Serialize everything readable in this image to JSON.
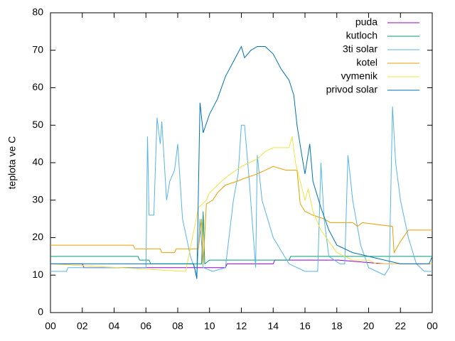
{
  "chart_data": {
    "type": "line",
    "ylabel": "teplota ve C",
    "xlim": [
      0,
      24
    ],
    "xticks": [
      {
        "value": 0,
        "label": "00"
      },
      {
        "value": 2,
        "label": "02"
      },
      {
        "value": 4,
        "label": "04"
      },
      {
        "value": 6,
        "label": "06"
      },
      {
        "value": 8,
        "label": "08"
      },
      10,
      12,
      14,
      16,
      18,
      20,
      22,
      {
        "value": 24,
        "label": "00"
      }
    ],
    "ylim": [
      0,
      80
    ],
    "yticks": [
      0,
      10,
      20,
      30,
      40,
      50,
      60,
      70,
      80
    ],
    "legend": "top-right",
    "series": [
      {
        "name": "puda",
        "color": "#9400d3",
        "x": [
          0,
          2,
          2.1,
          9.5,
          9.6,
          11,
          11.1,
          14,
          14.1,
          18,
          18.1,
          21,
          21.1,
          24
        ],
        "values": [
          13,
          13,
          12,
          12,
          12,
          12,
          13,
          13,
          14,
          14,
          14,
          13,
          13,
          13
        ]
      },
      {
        "name": "kutloch",
        "color": "#009e73",
        "x": [
          0,
          5.5,
          5.6,
          6.2,
          6.3,
          9.3,
          9.5,
          9.6,
          9.7,
          10,
          15,
          15.1,
          24
        ],
        "values": [
          15,
          15,
          14,
          14,
          13,
          13,
          13,
          27,
          13,
          14,
          14,
          15,
          15
        ]
      },
      {
        "name": "3ti solar",
        "color": "#56b4e9",
        "x": [
          0,
          1,
          1.1,
          6,
          6.1,
          6.2,
          6.5,
          6.7,
          6.9,
          7.0,
          7.3,
          7.5,
          7.8,
          8.0,
          8.3,
          8.8,
          9.2,
          9.4,
          9.6,
          10.2,
          11,
          11.5,
          11.8,
          12,
          12.2,
          12.5,
          12.9,
          13,
          13.3,
          14,
          15,
          16,
          16.8,
          17,
          17.2,
          17.5,
          18.2,
          18.5,
          18.7,
          19,
          19.5,
          20,
          20.5,
          21,
          21.3,
          21.5,
          21.7,
          22,
          22.5,
          23,
          23.5,
          24
        ],
        "values": [
          11,
          11,
          12,
          12,
          47,
          26,
          26,
          52,
          45,
          51,
          30,
          35,
          38,
          45,
          25,
          15,
          10,
          25,
          12,
          11,
          12,
          30,
          37,
          50,
          50,
          35,
          12,
          42,
          30,
          20,
          13,
          11,
          11,
          40,
          25,
          15,
          13,
          13,
          42,
          30,
          18,
          12,
          11,
          10,
          12,
          55,
          40,
          30,
          20,
          13,
          11,
          11
        ]
      },
      {
        "name": "kotel",
        "color": "#e69f00",
        "x": [
          0,
          5.2,
          5.3,
          6.9,
          7.0,
          7.8,
          7.9,
          9.3,
          9.5,
          9.6,
          9.8,
          10.2,
          10.5,
          11,
          11.7,
          12.3,
          13,
          13.5,
          14,
          14.8,
          15.5,
          15.7,
          16,
          16.5,
          17.2,
          17.6,
          19,
          19.3,
          19.6,
          21.5,
          21.6,
          22,
          22.5,
          24
        ],
        "values": [
          18,
          18,
          17,
          17,
          16,
          16,
          17,
          17,
          25,
          13,
          29,
          30,
          32,
          34,
          35,
          36,
          37,
          38,
          39,
          38,
          38,
          29,
          27,
          26,
          25,
          24,
          24,
          23,
          24,
          23,
          16,
          19,
          22,
          22
        ]
      },
      {
        "name": "vymenik",
        "color": "#f0e442",
        "x": [
          0,
          8.5,
          9.3,
          9.8,
          10,
          11,
          12,
          13,
          13.5,
          14,
          15,
          15.2,
          15.4,
          15.7,
          16,
          16.2,
          16.5,
          17,
          17.5,
          18,
          18.5,
          19,
          20,
          20.5,
          24
        ],
        "values": [
          13,
          11,
          28,
          30,
          32,
          36,
          39,
          41,
          43,
          44,
          44,
          47,
          40,
          35,
          30,
          33,
          27,
          22,
          19,
          16,
          15,
          14,
          14,
          13,
          13
        ]
      },
      {
        "name": "privod solar",
        "color": "#0072b2",
        "x": [
          0,
          9,
          9.2,
          9.4,
          9.6,
          10,
          10.5,
          11,
          11.5,
          12,
          12.2,
          12.6,
          13,
          13.5,
          14,
          14.5,
          15,
          15.3,
          15.5,
          15.8,
          16,
          16.3,
          16.5,
          17,
          17.5,
          18,
          19,
          20,
          21,
          22,
          23.8,
          24
        ],
        "values": [
          13,
          13,
          9,
          56,
          48,
          53,
          57,
          63,
          67,
          71,
          68,
          70,
          71,
          71,
          69,
          65,
          62,
          58,
          50,
          42,
          37,
          45,
          35,
          28,
          22,
          18,
          16,
          15,
          14,
          13,
          13,
          15
        ]
      }
    ]
  }
}
